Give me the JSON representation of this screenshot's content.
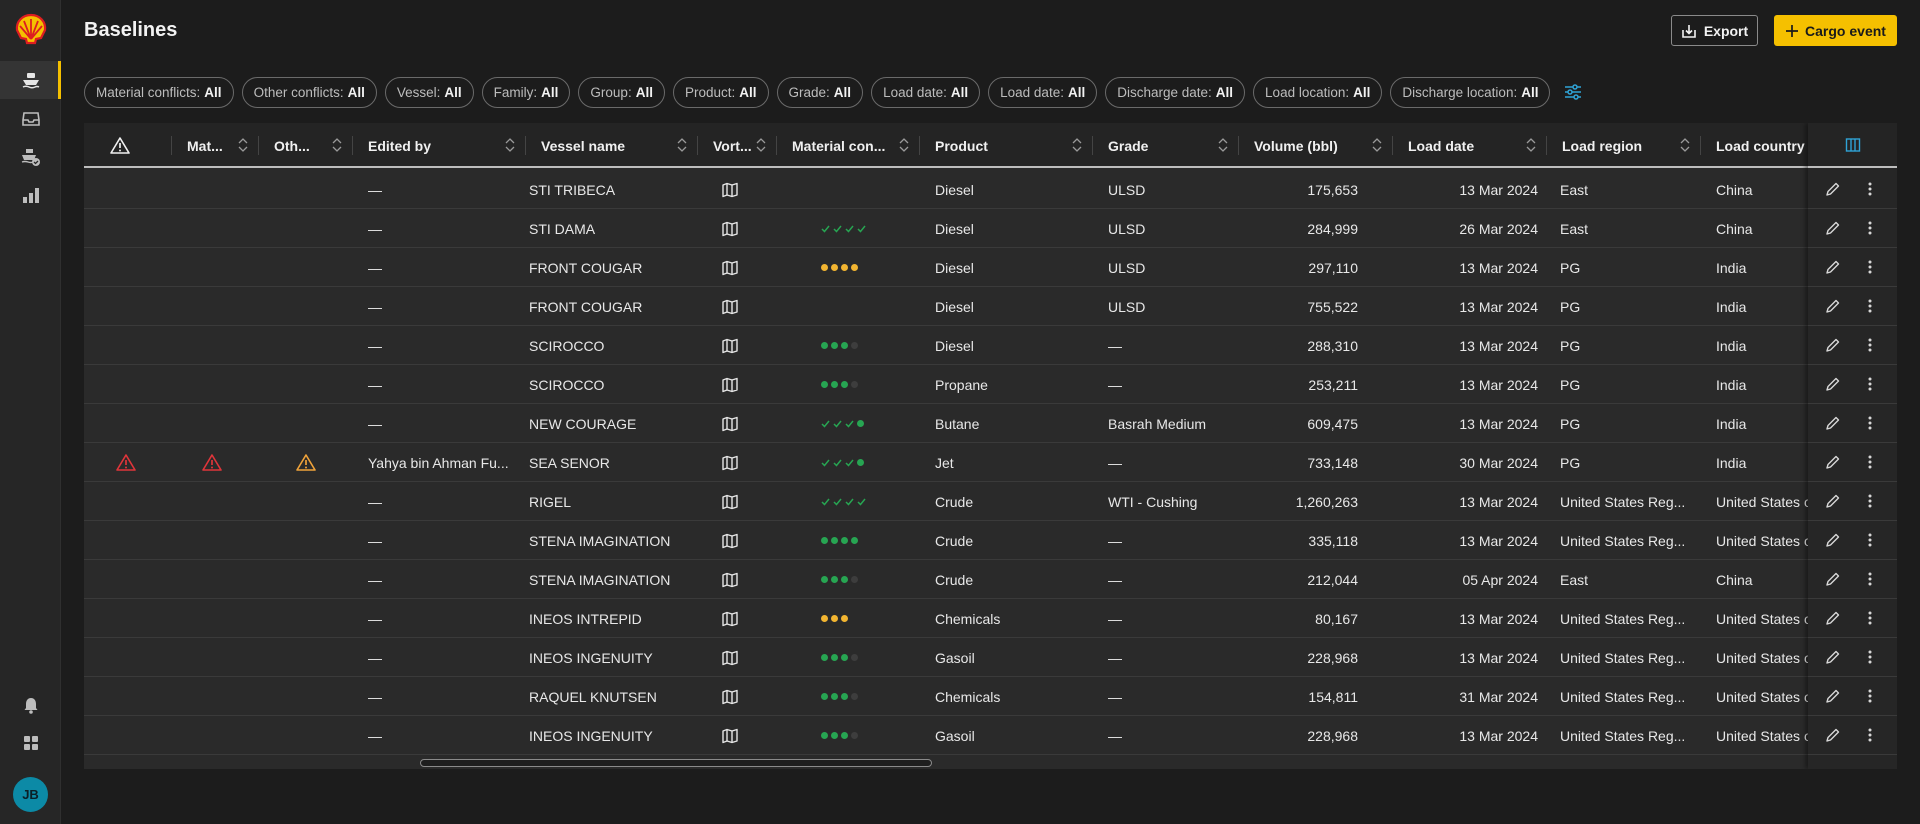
{
  "page": {
    "title": "Baselines"
  },
  "toolbar": {
    "export_label": "Export",
    "cargo_label": "Cargo event",
    "cargo_color": "#f5c000"
  },
  "sidebar": {
    "items": [
      {
        "name": "vessels",
        "icon": "ship-icon",
        "active": true
      },
      {
        "name": "inbox",
        "icon": "inbox-icon",
        "active": false
      },
      {
        "name": "shipments",
        "icon": "ship-check-icon",
        "active": false
      },
      {
        "name": "reports",
        "icon": "bar-chart-icon",
        "active": false
      }
    ],
    "avatar_initials": "JB"
  },
  "filters": [
    {
      "label": "Material conflicts:",
      "value": "All"
    },
    {
      "label": "Other conflicts:",
      "value": "All"
    },
    {
      "label": "Vessel:",
      "value": "All"
    },
    {
      "label": "Family:",
      "value": "All"
    },
    {
      "label": "Group:",
      "value": "All"
    },
    {
      "label": "Product:",
      "value": "All"
    },
    {
      "label": "Grade:",
      "value": "All"
    },
    {
      "label": "Load date:",
      "value": "All"
    },
    {
      "label": "Load date:",
      "value": "All"
    },
    {
      "label": "Discharge date:",
      "value": "All"
    },
    {
      "label": "Load location:",
      "value": "All"
    },
    {
      "label": "Discharge location:",
      "value": "All"
    }
  ],
  "table": {
    "columns": [
      "",
      "Mat...",
      "Oth...",
      "Edited by",
      "Vessel name",
      "Vort...",
      "Material con...",
      "Product",
      "Grade",
      "Volume (bbl)",
      "Load date",
      "Load region",
      "Load country"
    ],
    "colors": {
      "green": "#27a552",
      "amber": "#f2b531",
      "red": "#e0353a",
      "orange": "#f0a33a"
    },
    "rows": [
      {
        "warn": false,
        "mat": false,
        "oth": false,
        "edited": "—",
        "vessel": "STI TRIBECA",
        "status": "none",
        "product": "Diesel",
        "grade": "ULSD",
        "volume": "175,653",
        "date": "13 Mar 2024",
        "region": "East",
        "country": "China"
      },
      {
        "warn": false,
        "mat": false,
        "oth": false,
        "edited": "—",
        "vessel": "STI DAMA",
        "status": "checks4",
        "product": "Diesel",
        "grade": "ULSD",
        "volume": "284,999",
        "date": "26 Mar 2024",
        "region": "East",
        "country": "China"
      },
      {
        "warn": false,
        "mat": false,
        "oth": false,
        "edited": "—",
        "vessel": "FRONT COUGAR",
        "status": "amber4",
        "product": "Diesel",
        "grade": "ULSD",
        "volume": "297,110",
        "date": "13 Mar 2024",
        "region": "PG",
        "country": "India"
      },
      {
        "warn": false,
        "mat": false,
        "oth": false,
        "edited": "—",
        "vessel": "FRONT COUGAR",
        "status": "none",
        "product": "Diesel",
        "grade": "ULSD",
        "volume": "755,522",
        "date": "13 Mar 2024",
        "region": "PG",
        "country": "India"
      },
      {
        "warn": false,
        "mat": false,
        "oth": false,
        "edited": "—",
        "vessel": "SCIROCCO",
        "status": "green3",
        "product": "Diesel",
        "grade": "—",
        "volume": "288,310",
        "date": "13 Mar 2024",
        "region": "PG",
        "country": "India"
      },
      {
        "warn": false,
        "mat": false,
        "oth": false,
        "edited": "—",
        "vessel": "SCIROCCO",
        "status": "green3",
        "product": "Propane",
        "grade": "—",
        "volume": "253,211",
        "date": "13 Mar 2024",
        "region": "PG",
        "country": "India"
      },
      {
        "warn": false,
        "mat": false,
        "oth": false,
        "edited": "—",
        "vessel": "NEW COURAGE",
        "status": "checks3dot",
        "product": "Butane",
        "grade": "Basrah Medium",
        "volume": "609,475",
        "date": "13 Mar 2024",
        "region": "PG",
        "country": "India"
      },
      {
        "warn": true,
        "mat": true,
        "oth": true,
        "edited": "Yahya bin Ahman Fu...",
        "vessel": "SEA SENOR",
        "status": "checks3dot",
        "product": "Jet",
        "grade": "—",
        "volume": "733,148",
        "date": "30 Mar 2024",
        "region": "PG",
        "country": "India"
      },
      {
        "warn": false,
        "mat": false,
        "oth": false,
        "edited": "—",
        "vessel": "RIGEL",
        "status": "checks4",
        "product": "Crude",
        "grade": "WTI - Cushing",
        "volume": "1,260,263",
        "date": "13 Mar 2024",
        "region": "United States Reg...",
        "country": "United States of"
      },
      {
        "warn": false,
        "mat": false,
        "oth": false,
        "edited": "—",
        "vessel": "STENA IMAGINATION",
        "status": "green4",
        "product": "Crude",
        "grade": "—",
        "volume": "335,118",
        "date": "13 Mar 2024",
        "region": "United States Reg...",
        "country": "United States of"
      },
      {
        "warn": false,
        "mat": false,
        "oth": false,
        "edited": "—",
        "vessel": "STENA IMAGINATION",
        "status": "green3",
        "product": "Crude",
        "grade": "—",
        "volume": "212,044",
        "date": "05 Apr 2024",
        "region": "East",
        "country": "China"
      },
      {
        "warn": false,
        "mat": false,
        "oth": false,
        "edited": "—",
        "vessel": "INEOS INTREPID",
        "status": "amber3",
        "product": "Chemicals",
        "grade": "—",
        "volume": "80,167",
        "date": "13 Mar 2024",
        "region": "United States Reg...",
        "country": "United States of"
      },
      {
        "warn": false,
        "mat": false,
        "oth": false,
        "edited": "—",
        "vessel": "INEOS INGENUITY",
        "status": "green3",
        "product": "Gasoil",
        "grade": "—",
        "volume": "228,968",
        "date": "13 Mar 2024",
        "region": "United States Reg...",
        "country": "United States of"
      },
      {
        "warn": false,
        "mat": false,
        "oth": false,
        "edited": "—",
        "vessel": "RAQUEL KNUTSEN",
        "status": "green3",
        "product": "Chemicals",
        "grade": "—",
        "volume": "154,811",
        "date": "31 Mar 2024",
        "region": "United States Reg...",
        "country": "United States of"
      },
      {
        "warn": false,
        "mat": false,
        "oth": false,
        "edited": "—",
        "vessel": "INEOS INGENUITY",
        "status": "green3",
        "product": "Gasoil",
        "grade": "—",
        "volume": "228,968",
        "date": "13 Mar 2024",
        "region": "United States Reg...",
        "country": "United States of"
      }
    ]
  }
}
